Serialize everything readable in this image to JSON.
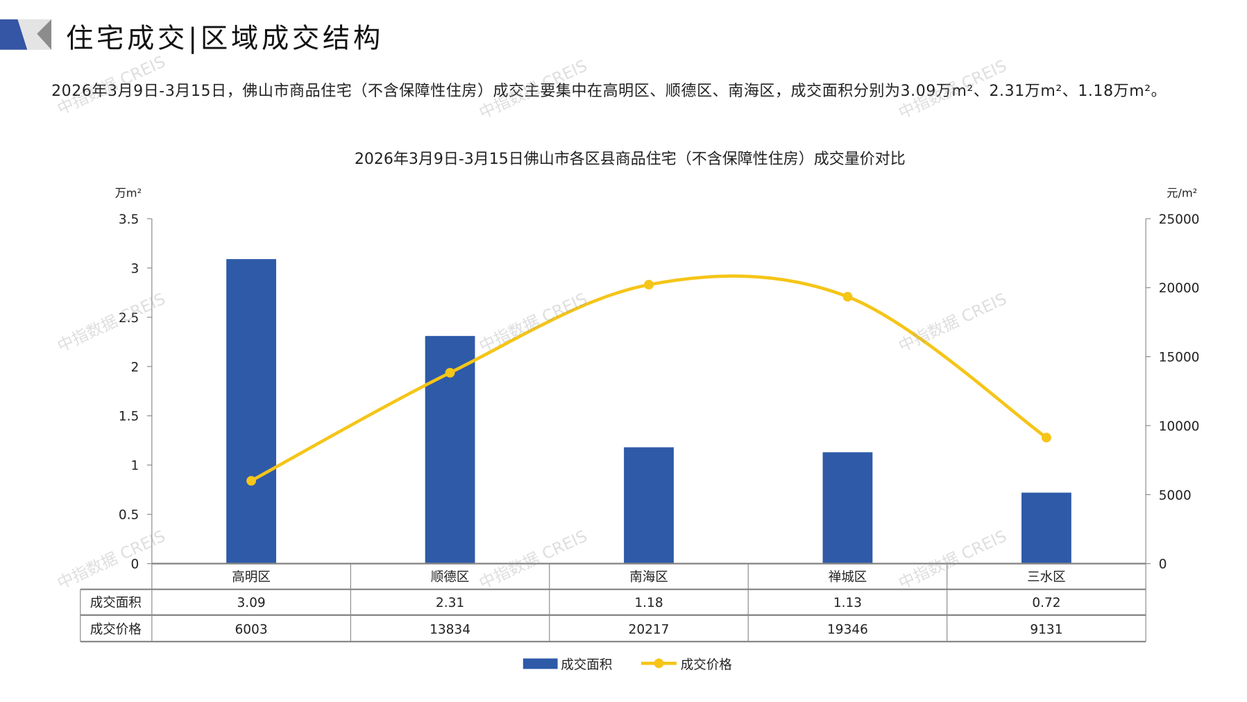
{
  "header": {
    "title": "住宅成交|区域成交结构"
  },
  "description": "2026年3月9日-3月15日，佛山市商品住宅（不含保障性住房）成交主要集中在高明区、顺德区、南海区，成交面积分别为3.09万m²、2.31万m²、1.18万m²。",
  "watermark": "中指数据 CREIS",
  "chart_data": {
    "type": "bar+line",
    "title": "2026年3月9日-3月15日佛山市各区县商品住宅（不含保障性住房）成交量价对比",
    "categories": [
      "高明区",
      "顺德区",
      "南海区",
      "禅城区",
      "三水区"
    ],
    "y_left": {
      "unit": "万m²",
      "range": [
        0,
        3.5
      ],
      "ticks": [
        "0",
        "0.5",
        "1",
        "1.5",
        "2",
        "2.5",
        "3",
        "3.5"
      ]
    },
    "y_right": {
      "unit": "元/m²",
      "range": [
        0,
        25000
      ],
      "ticks": [
        "0",
        "5000",
        "10000",
        "15000",
        "20000",
        "25000"
      ]
    },
    "series": [
      {
        "name": "成交面积",
        "type": "bar",
        "axis": "left",
        "color": "#2e5aa8",
        "values": [
          3.09,
          2.31,
          1.18,
          1.13,
          0.72
        ],
        "labels": [
          "3.09",
          "2.31",
          "1.18",
          "1.13",
          "0.72"
        ]
      },
      {
        "name": "成交价格",
        "type": "line",
        "smooth": true,
        "axis": "right",
        "color": "#f5c518",
        "values": [
          6003,
          13834,
          20217,
          19346,
          9131
        ],
        "labels": [
          "6003",
          "13834",
          "20217",
          "19346",
          "9131"
        ]
      }
    ],
    "legend": "bottom",
    "data_table": true
  }
}
